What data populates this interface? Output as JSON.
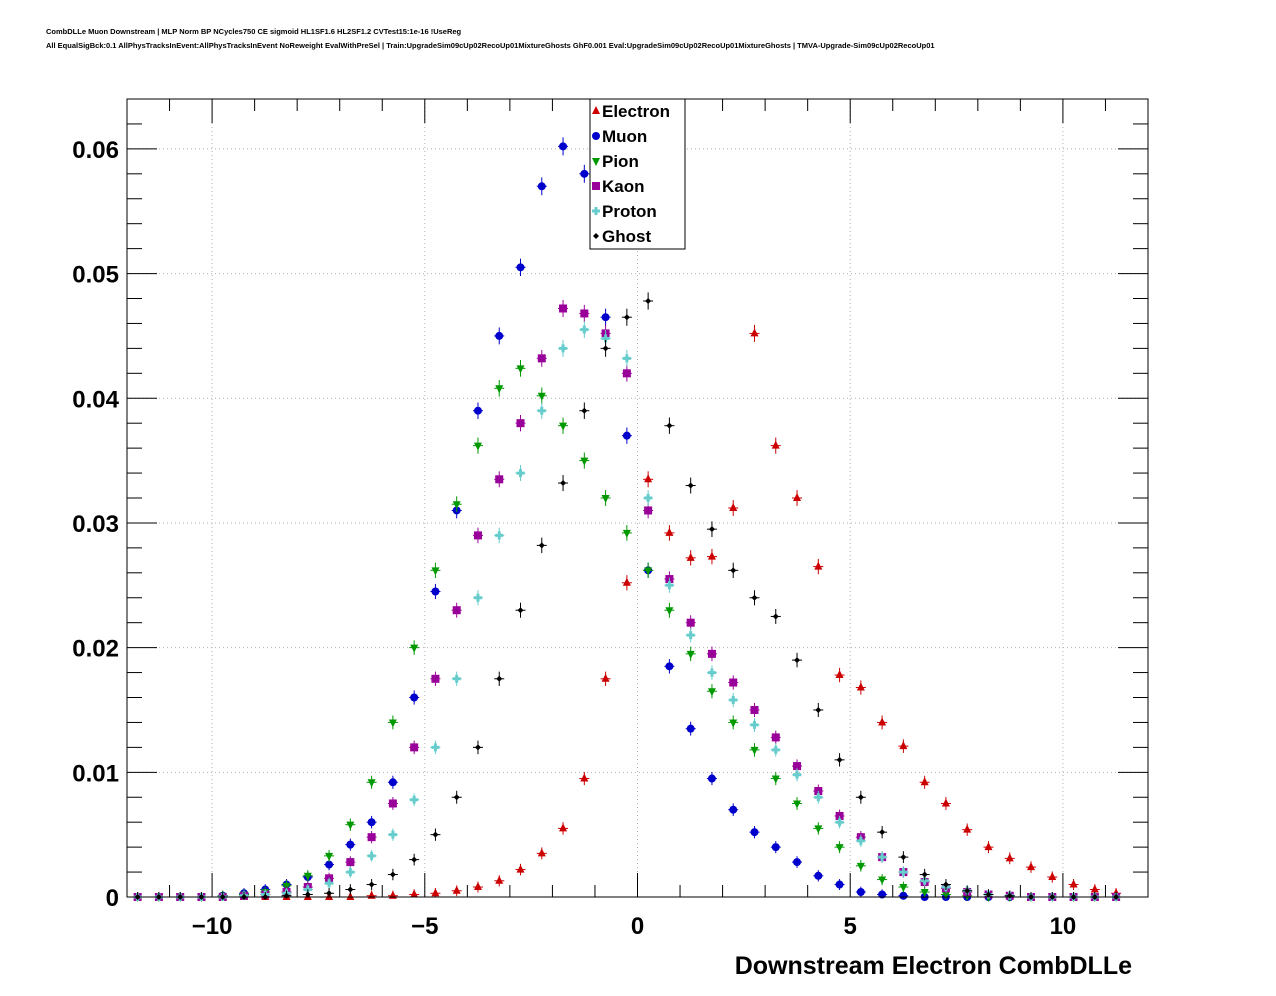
{
  "header": {
    "line1": "CombDLLe Muon Downstream | MLP Norm BP NCycles750 CE sigmoid HL1SF1.6 HL2SF1.2 CVTest15:1e-16 !UseReg",
    "line2": "All EqualSigBck:0.1 AllPhysTracksInEvent:AllPhysTracksInEvent NoReweight EvalWithPreSel | Train:UpgradeSim09cUp02RecoUp01MixtureGhosts GhF0.001 Eval:UpgradeSim09cUp02RecoUp01MixtureGhosts | TMVA-Upgrade-Sim09cUp02RecoUp01"
  },
  "chart_data": {
    "type": "scatter",
    "title": "",
    "xlabel": "Downstream Electron CombDLLe",
    "ylabel": "",
    "xlim": [
      -12,
      12
    ],
    "ylim": [
      0,
      0.064
    ],
    "xticks": [
      -10,
      -5,
      0,
      5,
      10
    ],
    "xtick_labels": [
      "−10",
      "−5",
      "0",
      "5",
      "10"
    ],
    "yticks": [
      0,
      0.01,
      0.02,
      0.03,
      0.04,
      0.05,
      0.06
    ],
    "ytick_labels": [
      "0",
      "0.01",
      "0.02",
      "0.03",
      "0.04",
      "0.05",
      "0.06"
    ],
    "grid": true,
    "legend_position": "top-center",
    "x": [
      -11.75,
      -11.25,
      -10.75,
      -10.25,
      -9.75,
      -9.25,
      -8.75,
      -8.25,
      -7.75,
      -7.25,
      -6.75,
      -6.25,
      -5.75,
      -5.25,
      -4.75,
      -4.25,
      -3.75,
      -3.25,
      -2.75,
      -2.25,
      -1.75,
      -1.25,
      -0.75,
      -0.25,
      0.25,
      0.75,
      1.25,
      1.75,
      2.25,
      2.75,
      3.25,
      3.75,
      4.25,
      4.75,
      5.25,
      5.75,
      6.25,
      6.75,
      7.25,
      7.75,
      8.25,
      8.75,
      9.25,
      9.75,
      10.25,
      10.75,
      11.25
    ],
    "series": [
      {
        "name": "Electron",
        "color": "#cc0000",
        "marker": "triangle-up",
        "values": [
          0,
          0,
          0,
          0,
          0,
          0,
          0,
          0,
          0,
          0,
          0,
          0.0001,
          0.0001,
          0.0002,
          0.0003,
          0.0005,
          0.0008,
          0.0013,
          0.0022,
          0.0035,
          0.0055,
          0.0095,
          0.0175,
          0.0252,
          0.0335,
          0.0292,
          0.0272,
          0.0273,
          0.0312,
          0.0452,
          0.0362,
          0.032,
          0.0265,
          0.0178,
          0.0168,
          0.014,
          0.0121,
          0.0092,
          0.0075,
          0.0054,
          0.004,
          0.0031,
          0.0024,
          0.0016,
          0.001,
          0.0006,
          0.0003
        ]
      },
      {
        "name": "Muon",
        "color": "#0000cc",
        "marker": "circle",
        "values": [
          0,
          0,
          0,
          0,
          0.0001,
          0.0003,
          0.0006,
          0.001,
          0.0016,
          0.0026,
          0.0042,
          0.006,
          0.0092,
          0.016,
          0.0245,
          0.031,
          0.039,
          0.045,
          0.0505,
          0.057,
          0.0602,
          0.058,
          0.0465,
          0.037,
          0.0262,
          0.0185,
          0.0135,
          0.0095,
          0.007,
          0.0052,
          0.004,
          0.0028,
          0.0017,
          0.001,
          0.0004,
          0.0002,
          0.0001,
          0,
          0,
          0,
          0,
          0,
          0,
          0,
          0,
          0,
          0
        ]
      },
      {
        "name": "Pion",
        "color": "#009900",
        "marker": "triangle-down",
        "values": [
          0,
          0,
          0,
          0,
          0.0001,
          0.0002,
          0.0004,
          0.0009,
          0.0017,
          0.0033,
          0.0058,
          0.0092,
          0.014,
          0.02,
          0.0262,
          0.0315,
          0.0362,
          0.0408,
          0.0424,
          0.0402,
          0.0378,
          0.035,
          0.032,
          0.0292,
          0.0262,
          0.023,
          0.0195,
          0.0165,
          0.014,
          0.0118,
          0.0095,
          0.0075,
          0.0055,
          0.004,
          0.0025,
          0.0014,
          0.0008,
          0.0004,
          0.0002,
          0.0001,
          0,
          0,
          0,
          0,
          0,
          0,
          0
        ]
      },
      {
        "name": "Kaon",
        "color": "#990099",
        "marker": "square",
        "values": [
          0,
          0,
          0,
          0,
          0,
          0.0001,
          0.0002,
          0.0004,
          0.0008,
          0.0015,
          0.0028,
          0.0048,
          0.0075,
          0.012,
          0.0175,
          0.023,
          0.029,
          0.0335,
          0.038,
          0.0432,
          0.0472,
          0.0468,
          0.0452,
          0.042,
          0.031,
          0.0255,
          0.022,
          0.0195,
          0.0172,
          0.015,
          0.0128,
          0.0105,
          0.0085,
          0.0065,
          0.0048,
          0.0032,
          0.002,
          0.0012,
          0.0007,
          0.0004,
          0.0002,
          0.0001,
          0,
          0,
          0,
          0,
          0
        ]
      },
      {
        "name": "Proton",
        "color": "#66cccc",
        "marker": "cross",
        "values": [
          0,
          0,
          0,
          0,
          0,
          0.0001,
          0.0002,
          0.0003,
          0.0006,
          0.0011,
          0.002,
          0.0033,
          0.005,
          0.0078,
          0.012,
          0.0175,
          0.024,
          0.029,
          0.034,
          0.039,
          0.044,
          0.0455,
          0.0448,
          0.0432,
          0.032,
          0.025,
          0.021,
          0.018,
          0.0158,
          0.0138,
          0.0118,
          0.0098,
          0.008,
          0.006,
          0.0045,
          0.0032,
          0.002,
          0.0013,
          0.0008,
          0.0005,
          0.0002,
          0.0001,
          0,
          0,
          0,
          0,
          0
        ]
      },
      {
        "name": "Ghost",
        "color": "#000000",
        "marker": "star",
        "values": [
          0,
          0,
          0,
          0,
          0,
          0,
          0,
          0.0001,
          0.0002,
          0.0003,
          0.0006,
          0.001,
          0.0018,
          0.003,
          0.005,
          0.008,
          0.012,
          0.0175,
          0.023,
          0.0282,
          0.0332,
          0.039,
          0.044,
          0.0465,
          0.0478,
          0.0378,
          0.033,
          0.0295,
          0.0262,
          0.024,
          0.0225,
          0.019,
          0.015,
          0.011,
          0.008,
          0.0052,
          0.0032,
          0.0018,
          0.001,
          0.0005,
          0.0002,
          0.0001,
          0,
          0,
          0,
          0,
          0
        ]
      }
    ]
  }
}
